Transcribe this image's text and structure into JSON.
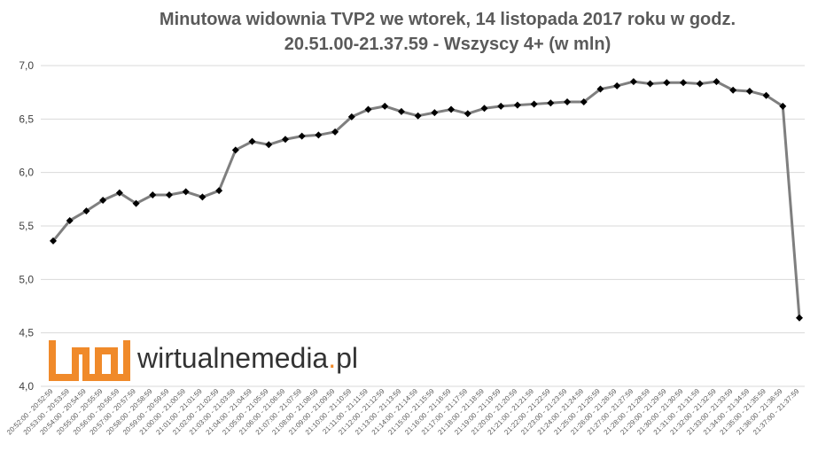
{
  "chart_data": {
    "type": "line",
    "title": "Minutowa widownia TVP2 we wtorek, 14 listopada 2017 roku w godz.",
    "subtitle": "20.51.00-21.37.59  - Wszyscy 4+ (w mln)",
    "ylim": [
      4.0,
      7.0
    ],
    "yticks": [
      "7,0",
      "6,5",
      "6,0",
      "5,5",
      "5,0",
      "4,5",
      "4,0"
    ],
    "ytick_values": [
      7.0,
      6.5,
      6.0,
      5.5,
      5.0,
      4.5,
      4.0
    ],
    "grid": true,
    "series_color": "#7f7f7f",
    "marker_color": "#000000",
    "categories": [
      "20:52:00 - 20:52:59",
      "20:53:00 - 20:53:59",
      "20:54:00 - 20:54:59",
      "20:55:00 - 20:55:59",
      "20:56:00 - 20:56:59",
      "20:57:00 - 20:57:59",
      "20:58:00 - 20:58:59",
      "20:59:00 - 20:59:59",
      "21:00:00 - 21:00:59",
      "21:01:00 - 21:01:59",
      "21:02:00 - 21:02:59",
      "21:03:00 - 21:03:59",
      "21:04:00 - 21:04:59",
      "21:05:00 - 21:05:59",
      "21:06:00 - 21:06:59",
      "21:07:00 - 21:07:59",
      "21:08:00 - 21:08:59",
      "21:09:00 - 21:09:59",
      "21:10:00 - 21:10:59",
      "21:11:00 - 21:11:59",
      "21:12:00 - 21:12:59",
      "21:13:00 - 21:13:59",
      "21:14:00 - 21:14:59",
      "21:15:00 - 21:15:59",
      "21:16:00 - 21:16:59",
      "21:17:00 - 21:17:59",
      "21:18:00 - 21:18:59",
      "21:19:00 - 21:19:59",
      "21:20:00 - 21:20:59",
      "21:21:00 - 21:21:59",
      "21:22:00 - 21:22:59",
      "21:23:00 - 21:23:59",
      "21:24:00 - 21:24:59",
      "21:25:00 - 21:25:59",
      "21:26:00 - 21:26:59",
      "21:27:00 - 21:27:59",
      "21:28:00 - 21:28:59",
      "21:29:00 - 21:29:59",
      "21:30:00 - 21:30:59",
      "21:31:00 - 21:31:59",
      "21:32:00 - 21:32:59",
      "21:33:00 - 21:33:59",
      "21:34:00 - 21:34:59",
      "21:35:00 - 21:35:59",
      "21:36:00 - 21:36:59",
      "21:37:00 - 21:37:59"
    ],
    "values": [
      5.36,
      5.55,
      5.64,
      5.74,
      5.81,
      5.71,
      5.79,
      5.79,
      5.82,
      5.77,
      5.83,
      6.21,
      6.29,
      6.26,
      6.31,
      6.34,
      6.35,
      6.38,
      6.52,
      6.59,
      6.62,
      6.57,
      6.53,
      6.56,
      6.59,
      6.55,
      6.6,
      6.62,
      6.63,
      6.64,
      6.65,
      6.66,
      6.66,
      6.78,
      6.81,
      6.85,
      6.83,
      6.84,
      6.84,
      6.83,
      6.85,
      6.77,
      6.76,
      6.72,
      6.62,
      4.64
    ]
  },
  "watermark": {
    "brand": "wirtualnemedia",
    "dot": ".",
    "suffix": "pl",
    "color": "#f08a2a"
  }
}
